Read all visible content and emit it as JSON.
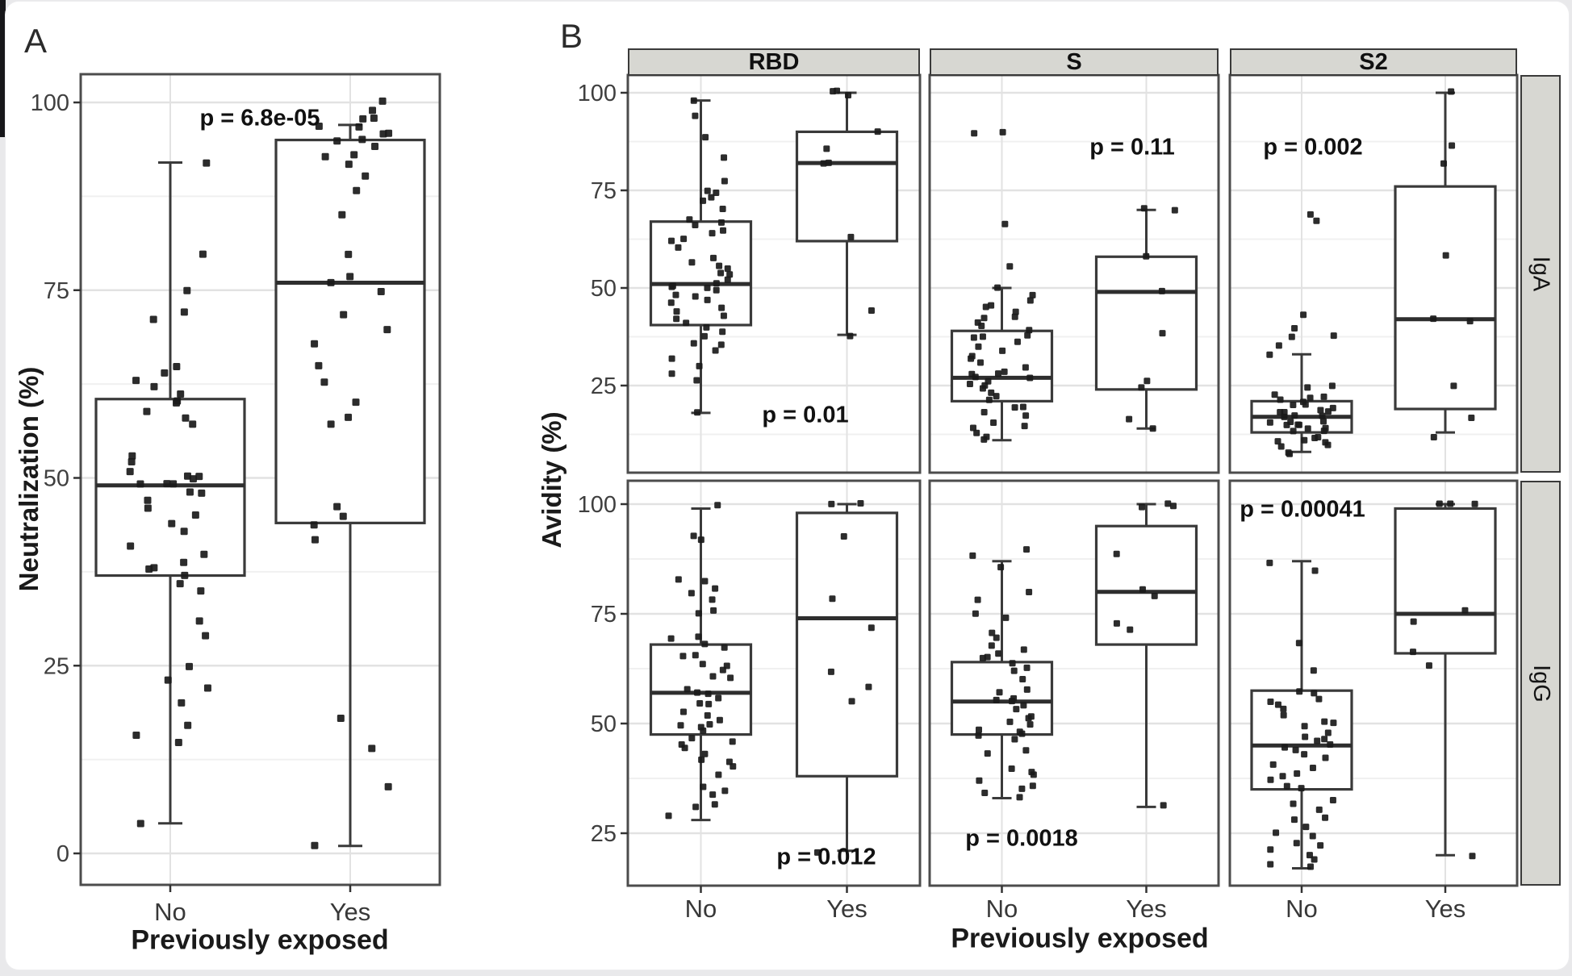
{
  "figure": {
    "panel_a_label": "A",
    "panel_b_label": "B"
  },
  "colors": {
    "box_stroke": "#3a3a3a",
    "median": "#2e2e2e",
    "point": "#1a1a1a",
    "grid_major": "#e2e2e2",
    "grid_minor": "#f0f0f0",
    "panel_border": "#4c4c4c",
    "tick_label": "#3f3f3f",
    "strip_fill": "#d7d7d2"
  },
  "chart_data": [
    {
      "panel": "A",
      "type": "boxplot-jitter",
      "xlabel": "Previously exposed",
      "ylabel": "Neutralization (%)",
      "categories": [
        "No",
        "Yes"
      ],
      "y_ticks": [
        0,
        25,
        50,
        75,
        100
      ],
      "ylim": [
        -4,
        104
      ],
      "grid": true,
      "p_value": "p = 6.8e-05",
      "groups": [
        {
          "category": "No",
          "whisker_low": 4,
          "q1": 37,
          "median": 49,
          "q3": 60.5,
          "whisker_high": 92,
          "points": [
            92,
            80,
            75,
            72,
            71,
            65,
            64,
            63,
            62,
            61,
            60,
            60,
            59,
            58,
            57,
            53,
            52,
            51,
            50,
            50,
            50,
            49,
            49,
            49,
            48,
            48,
            47,
            46,
            45,
            44,
            43,
            41,
            40,
            39,
            38,
            38,
            37,
            36,
            35,
            31,
            29,
            25,
            23,
            22,
            20,
            17,
            16,
            15,
            4
          ]
        },
        {
          "category": "Yes",
          "whisker_low": 1,
          "q1": 44,
          "median": 76,
          "q3": 95,
          "whisker_high": 97,
          "points": [
            100,
            99,
            98,
            98,
            97,
            97,
            96,
            96,
            95,
            95,
            94,
            93,
            93,
            92,
            90,
            88,
            85,
            80,
            77,
            76,
            75,
            72,
            70,
            68,
            65,
            63,
            60,
            58,
            57,
            46,
            45,
            44,
            42,
            18,
            14,
            9,
            1
          ]
        }
      ]
    },
    {
      "panel": "B",
      "type": "faceted-boxplot-jitter",
      "xlabel": "Previously exposed",
      "ylabel": "Avidity (%)",
      "categories": [
        "No",
        "Yes"
      ],
      "facet_cols": [
        "RBD",
        "S",
        "S2"
      ],
      "facet_rows": [
        "IgA",
        "IgG"
      ],
      "y_ticks": [
        25,
        50,
        75,
        100
      ],
      "grid": true,
      "facets": [
        {
          "col": "RBD",
          "row": "IgA",
          "p_value": "p = 0.01",
          "groups": [
            {
              "category": "No",
              "whisker_low": 18,
              "q1": 40.5,
              "median": 51,
              "q3": 67,
              "whisker_high": 98,
              "points": [
                98,
                94,
                89,
                83,
                77,
                75,
                74,
                73,
                72,
                70,
                68,
                67,
                66,
                65,
                64,
                63,
                62,
                60,
                58,
                57,
                56,
                55,
                54,
                53,
                52,
                51,
                51,
                50,
                50,
                49,
                48,
                48,
                47,
                46,
                45,
                44,
                43,
                42,
                41,
                40,
                39,
                38,
                36,
                35,
                34,
                32,
                30,
                28,
                26,
                18
              ]
            },
            {
              "category": "Yes",
              "whisker_low": 38,
              "q1": 62,
              "median": 82,
              "q3": 90,
              "whisker_high": 100,
              "points": [
                100,
                100,
                99,
                90,
                86,
                82,
                82,
                63,
                44,
                38
              ]
            }
          ]
        },
        {
          "col": "S",
          "row": "IgA",
          "p_value": "p = 0.11",
          "groups": [
            {
              "category": "No",
              "whisker_low": 11,
              "q1": 21,
              "median": 27,
              "q3": 39,
              "whisker_high": 50,
              "points": [
                90,
                90,
                66,
                56,
                50,
                48,
                47,
                46,
                45,
                44,
                43,
                42,
                41,
                40,
                39,
                38,
                38,
                37,
                36,
                35,
                34,
                33,
                32,
                31,
                30,
                29,
                28,
                28,
                27,
                27,
                26,
                25,
                25,
                24,
                23,
                22,
                21,
                20,
                19,
                18,
                17,
                16,
                15,
                14,
                13,
                12,
                11
              ]
            },
            {
              "category": "Yes",
              "whisker_low": 14,
              "q1": 24,
              "median": 49,
              "q3": 58,
              "whisker_high": 70,
              "points": [
                70,
                70,
                58,
                49,
                38,
                26,
                24,
                16,
                14
              ]
            }
          ]
        },
        {
          "col": "S2",
          "row": "IgA",
          "p_value": "p = 0.002",
          "groups": [
            {
              "category": "No",
              "whisker_low": 8,
              "q1": 13,
              "median": 17,
              "q3": 21,
              "whisker_high": 33,
              "points": [
                69,
                67,
                43,
                40,
                38,
                37,
                35,
                33,
                25,
                24,
                23,
                22,
                22,
                21,
                21,
                20,
                20,
                19,
                19,
                18,
                18,
                18,
                17,
                17,
                17,
                16,
                16,
                16,
                15,
                15,
                15,
                14,
                14,
                13,
                13,
                12,
                12,
                11,
                11,
                10,
                10,
                9,
                8,
                8
              ]
            },
            {
              "category": "Yes",
              "whisker_low": 13,
              "q1": 19,
              "median": 42,
              "q3": 76,
              "whisker_high": 100,
              "points": [
                100,
                86,
                82,
                58,
                42,
                41,
                25,
                17,
                12
              ]
            }
          ]
        },
        {
          "col": "RBD",
          "row": "IgG",
          "p_value": "p = 0.012",
          "groups": [
            {
              "category": "No",
              "whisker_low": 28,
              "q1": 47.5,
              "median": 57,
              "q3": 68,
              "whisker_high": 99,
              "points": [
                100,
                93,
                92,
                83,
                82,
                81,
                80,
                78,
                76,
                75,
                70,
                69,
                68,
                67,
                66,
                65,
                64,
                63,
                62,
                61,
                60,
                58,
                57,
                57,
                56,
                55,
                54,
                53,
                52,
                51,
                50,
                50,
                49,
                48,
                47,
                46,
                45,
                44,
                43,
                42,
                41,
                40,
                38,
                36,
                35,
                34,
                32,
                31,
                29
              ]
            },
            {
              "category": "Yes",
              "whisker_low": 21,
              "q1": 38,
              "median": 74,
              "q3": 98,
              "whisker_high": 100,
              "points": [
                100,
                100,
                93,
                78,
                72,
                62,
                58,
                55,
                21
              ]
            }
          ]
        },
        {
          "col": "S",
          "row": "IgG",
          "p_value": "p = 0.0018",
          "groups": [
            {
              "category": "No",
              "whisker_low": 33,
              "q1": 47.5,
              "median": 55,
              "q3": 64,
              "whisker_high": 87,
              "points": [
                90,
                88,
                86,
                80,
                78,
                75,
                74,
                71,
                70,
                68,
                67,
                66,
                65,
                65,
                64,
                63,
                62,
                60,
                58,
                57,
                56,
                55,
                55,
                54,
                53,
                52,
                51,
                50,
                50,
                49,
                48,
                48,
                47,
                46,
                44,
                43,
                40,
                39,
                38,
                37,
                36,
                35,
                34,
                33
              ]
            },
            {
              "category": "Yes",
              "whisker_low": 31,
              "q1": 68,
              "median": 80,
              "q3": 95,
              "whisker_high": 100,
              "points": [
                100,
                100,
                99,
                89,
                81,
                79,
                73,
                71,
                31
              ]
            }
          ]
        },
        {
          "col": "S2",
          "row": "IgG",
          "p_value": "p = 0.00041",
          "groups": [
            {
              "category": "No",
              "whisker_low": 17,
              "q1": 35,
              "median": 45,
              "q3": 57.5,
              "whisker_high": 87,
              "points": [
                87,
                85,
                68,
                62,
                57,
                57,
                56,
                55,
                54,
                53,
                52,
                50,
                50,
                49,
                48,
                47,
                46,
                46,
                45,
                45,
                44,
                43,
                42,
                41,
                40,
                39,
                38,
                37,
                36,
                35,
                33,
                32,
                30,
                29,
                28,
                26,
                25,
                24,
                23,
                22,
                21,
                20,
                19,
                18,
                17
              ]
            },
            {
              "category": "Yes",
              "whisker_low": 20,
              "q1": 66,
              "median": 75,
              "q3": 99,
              "whisker_high": 100,
              "points": [
                100,
                100,
                100,
                76,
                73,
                66,
                63,
                20
              ]
            }
          ]
        }
      ]
    }
  ]
}
